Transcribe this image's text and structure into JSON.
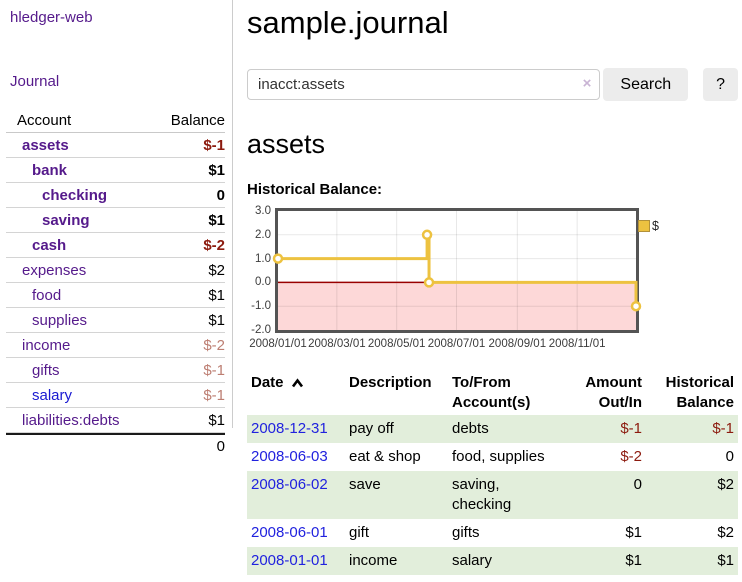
{
  "app": {
    "brand": "hledger-web",
    "nav_journal": "Journal"
  },
  "sidebar": {
    "header": {
      "account": "Account",
      "balance": "Balance"
    },
    "rows": [
      {
        "name": "assets",
        "balance": "$-1",
        "indent": 1,
        "bold": true,
        "neg": true
      },
      {
        "name": "bank",
        "balance": "$1",
        "indent": 2,
        "bold": true
      },
      {
        "name": "checking",
        "balance": "0",
        "indent": 3,
        "bold": true
      },
      {
        "name": "saving",
        "balance": "$1",
        "indent": 3,
        "bold": true
      },
      {
        "name": "cash",
        "balance": "$-2",
        "indent": 2,
        "bold": true,
        "neg": true
      },
      {
        "name": "expenses",
        "balance": "$2",
        "indent": 1
      },
      {
        "name": "food",
        "balance": "$1",
        "indent": 2
      },
      {
        "name": "supplies",
        "balance": "$1",
        "indent": 2
      },
      {
        "name": "income",
        "balance": "$-2",
        "indent": 1,
        "dimneg": true
      },
      {
        "name": "gifts",
        "balance": "$-1",
        "indent": 2,
        "dimneg": true
      },
      {
        "name": "salary",
        "balance": "$-1",
        "indent": 2,
        "dimneg": true,
        "blue": true
      },
      {
        "name": "liabilities:debts",
        "balance": "$1",
        "indent": 1
      }
    ],
    "total": "0"
  },
  "header": {
    "title": "sample.journal"
  },
  "search": {
    "value": "inacct:assets",
    "clear_icon": "×",
    "button": "Search",
    "help_button": "?"
  },
  "account_page": {
    "heading": "assets",
    "chart_label": "Historical Balance:"
  },
  "chart_data": {
    "type": "line",
    "step": true,
    "title": "Historical Balance",
    "x_min": "2008-01-01",
    "x_max": "2008-12-31",
    "ylim": [
      -2,
      3
    ],
    "grid": true,
    "legend_position": "top-right",
    "series": [
      {
        "name": "$",
        "points": [
          {
            "date": "2008-01-01",
            "value": 1
          },
          {
            "date": "2008-06-01",
            "value": 2
          },
          {
            "date": "2008-06-03",
            "value": 0
          },
          {
            "date": "2008-12-31",
            "value": -1
          }
        ]
      }
    ],
    "x_ticks": [
      {
        "date": "2008-01-01",
        "label": "2008/01/01"
      },
      {
        "date": "2008-03-01",
        "label": "2008/03/01"
      },
      {
        "date": "2008-05-01",
        "label": "2008/05/01"
      },
      {
        "date": "2008-07-01",
        "label": "2008/07/01"
      },
      {
        "date": "2008-09-01",
        "label": "2008/09/01"
      },
      {
        "date": "2008-11-01",
        "label": "2008/11/01"
      }
    ],
    "y_ticks": [
      {
        "value": 3,
        "label": "3.0"
      },
      {
        "value": 2,
        "label": "2.0"
      },
      {
        "value": 1,
        "label": "1.0"
      },
      {
        "value": 0,
        "label": "0.0"
      },
      {
        "value": -1,
        "label": "-1.0"
      },
      {
        "value": -2,
        "label": "-2.0"
      }
    ],
    "colors": {
      "line": "#edc240",
      "marker_fill": "#ffffff",
      "negative_region": "#fdd8d8",
      "zero_line": "#990000",
      "plot_border": "#545454",
      "gridline": "rgba(0,0,0,0.09)"
    }
  },
  "register": {
    "columns": [
      {
        "label": "Date",
        "sorted": "asc"
      },
      {
        "label": "Description"
      },
      {
        "label": "To/From",
        "label2": "Account(s)"
      },
      {
        "label": "Amount",
        "label2": "Out/In"
      },
      {
        "label": "Historical",
        "label2": "Balance"
      }
    ],
    "rows": [
      {
        "date": "2008-12-31",
        "description": "pay off",
        "accounts": "debts",
        "amount": "$-1",
        "amount_neg": true,
        "balance": "$-1",
        "balance_neg": true
      },
      {
        "date": "2008-06-03",
        "description": "eat & shop",
        "accounts": "food, supplies",
        "amount": "$-2",
        "amount_neg": true,
        "balance": "0",
        "balance_neg": false
      },
      {
        "date": "2008-06-02",
        "description": "save",
        "accounts": "saving, checking",
        "amount": "0",
        "amount_neg": false,
        "balance": "$2",
        "balance_neg": false
      },
      {
        "date": "2008-06-01",
        "description": "gift",
        "accounts": "gifts",
        "amount": "$1",
        "amount_neg": false,
        "balance": "$2",
        "balance_neg": false
      },
      {
        "date": "2008-01-01",
        "description": "income",
        "accounts": "salary",
        "amount": "$1",
        "amount_neg": false,
        "balance": "$1",
        "balance_neg": false
      }
    ]
  },
  "colors": {
    "link_purple": "#551a8b",
    "link_blue": "#2122de",
    "negative_dark": "#8c1a0e",
    "negative_dim": "#bd7e72",
    "row_green": "#e2eedb"
  }
}
